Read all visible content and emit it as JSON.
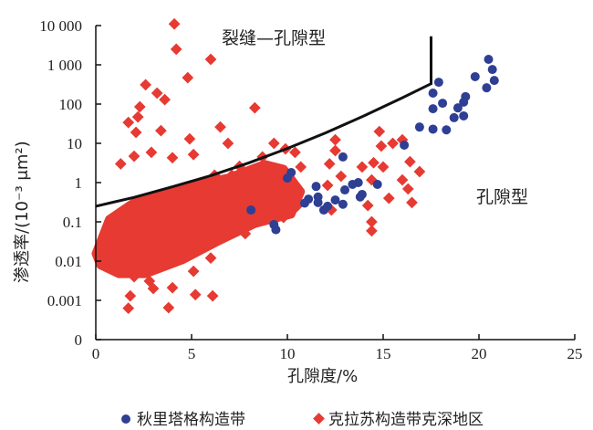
{
  "chart_data": {
    "type": "scatter",
    "xlabel": "孔隙度/%",
    "ylabel": "渗透率/(10⁻³ μm²)",
    "xlim": [
      0,
      25
    ],
    "ylim": [
      0.0001,
      10000
    ],
    "yscale": "log",
    "xticks": [
      {
        "v": 0,
        "label": "0"
      },
      {
        "v": 5,
        "label": "5"
      },
      {
        "v": 10,
        "label": "10"
      },
      {
        "v": 15,
        "label": "15"
      },
      {
        "v": 20,
        "label": "20"
      },
      {
        "v": 25,
        "label": "25"
      }
    ],
    "yticks": [
      {
        "v": 10000,
        "label": "10 000"
      },
      {
        "v": 1000,
        "label": "1 000"
      },
      {
        "v": 100,
        "label": "100"
      },
      {
        "v": 10,
        "label": "10"
      },
      {
        "v": 1,
        "label": "1"
      },
      {
        "v": 0.1,
        "label": "0.1"
      },
      {
        "v": 0.01,
        "label": "0.01"
      },
      {
        "v": 0.001,
        "label": "0.001"
      },
      {
        "v": 0.0001,
        "label": "0"
      }
    ],
    "annotations": {
      "fracture_pore": "裂缝—孔隙型",
      "pore": "孔隙型"
    },
    "legend": {
      "placement": "bottom"
    },
    "boundary_curve": [
      [
        0,
        0.25
      ],
      [
        2,
        0.42
      ],
      [
        4,
        0.78
      ],
      [
        6,
        1.5
      ],
      [
        8,
        3.2
      ],
      [
        10,
        7.4
      ],
      [
        12,
        18.5
      ],
      [
        14,
        50
      ],
      [
        16,
        145
      ],
      [
        17.5,
        330
      ]
    ],
    "series": [
      {
        "name": "秋里塔格构造带",
        "color": "#2e3f94",
        "marker": "circle",
        "points": [
          [
            20.5,
            1380
          ],
          [
            20.7,
            760
          ],
          [
            20.8,
            400
          ],
          [
            20.4,
            260
          ],
          [
            19.8,
            500
          ],
          [
            17.9,
            360
          ],
          [
            17.6,
            190
          ],
          [
            18.1,
            105
          ],
          [
            17.6,
            76
          ],
          [
            19.3,
            155
          ],
          [
            19.2,
            112
          ],
          [
            18.9,
            80
          ],
          [
            18.7,
            45
          ],
          [
            19.2,
            50
          ],
          [
            16.9,
            26
          ],
          [
            17.6,
            23
          ],
          [
            18.3,
            22
          ],
          [
            16.1,
            9
          ],
          [
            12.9,
            4.5
          ],
          [
            14.7,
            0.9
          ],
          [
            13.7,
            1.0
          ],
          [
            13.4,
            0.9
          ],
          [
            13.0,
            0.65
          ],
          [
            13.9,
            0.5
          ],
          [
            13.8,
            0.43
          ],
          [
            12.9,
            0.28
          ],
          [
            12.5,
            0.36
          ],
          [
            11.5,
            0.8
          ],
          [
            11.6,
            0.43
          ],
          [
            11.6,
            0.31
          ],
          [
            12.1,
            0.25
          ],
          [
            11.9,
            0.2
          ],
          [
            11.1,
            0.38
          ],
          [
            10.9,
            0.3
          ],
          [
            10.2,
            1.8
          ],
          [
            10.0,
            1.3
          ],
          [
            9.3,
            0.085
          ],
          [
            9.4,
            0.063
          ],
          [
            8.1,
            0.2
          ]
        ]
      },
      {
        "name": "克拉苏构造带克深地区",
        "color": "#e63a32",
        "marker": "diamond",
        "dense_region": [
          [
            0,
            0.0155
          ],
          [
            0.7,
            0.117
          ],
          [
            2.1,
            0.34
          ],
          [
            4.5,
            0.76
          ],
          [
            6.9,
            1.32
          ],
          [
            8.8,
            2.95
          ],
          [
            9.8,
            2.24
          ],
          [
            10.7,
            0.59
          ],
          [
            10.2,
            0.155
          ],
          [
            8.3,
            0.089
          ],
          [
            6.4,
            0.032
          ],
          [
            4.5,
            0.0105
          ],
          [
            2.6,
            0.0047
          ],
          [
            1.2,
            0.0047
          ],
          [
            0.24,
            0.0079
          ]
        ],
        "points": [
          [
            4.1,
            11000
          ],
          [
            4.2,
            2500
          ],
          [
            6.0,
            1380
          ],
          [
            4.8,
            470
          ],
          [
            2.6,
            310
          ],
          [
            3.2,
            190
          ],
          [
            3.6,
            130
          ],
          [
            2.3,
            85
          ],
          [
            2.2,
            47
          ],
          [
            1.7,
            34
          ],
          [
            2.1,
            19
          ],
          [
            3.4,
            21
          ],
          [
            8.3,
            80
          ],
          [
            6.5,
            26
          ],
          [
            6.9,
            10
          ],
          [
            4.9,
            13
          ],
          [
            5.1,
            5.2
          ],
          [
            1.3,
            3.0
          ],
          [
            2.0,
            4.7
          ],
          [
            2.9,
            5.9
          ],
          [
            4.0,
            4.3
          ],
          [
            6.2,
            1.55
          ],
          [
            7.1,
            1.55
          ],
          [
            2.8,
            0.0031
          ],
          [
            1.7,
            0.00063
          ],
          [
            3.8,
            0.00065
          ],
          [
            5.2,
            0.0014
          ],
          [
            6.1,
            0.0013
          ],
          [
            4.0,
            0.0021
          ],
          [
            1.8,
            0.0013
          ],
          [
            5.1,
            0.0055
          ],
          [
            14.8,
            20
          ],
          [
            14.9,
            8.5
          ],
          [
            15.5,
            10
          ],
          [
            16.0,
            12.3
          ],
          [
            12.5,
            12.3
          ],
          [
            12.5,
            6.5
          ],
          [
            12.2,
            3.0
          ],
          [
            13.9,
            2.5
          ],
          [
            14.5,
            3.2
          ],
          [
            15.0,
            2.5
          ],
          [
            16.4,
            3.4
          ],
          [
            16.9,
            1.9
          ],
          [
            16.0,
            1.17
          ],
          [
            16.3,
            0.69
          ],
          [
            16.5,
            0.31
          ],
          [
            15.3,
            0.4
          ],
          [
            14.4,
            1.17
          ],
          [
            14.2,
            0.26
          ],
          [
            14.4,
            0.1
          ],
          [
            14.4,
            0.059
          ],
          [
            12.1,
            0.85
          ],
          [
            12.8,
            1.45
          ],
          [
            12.3,
            0.2
          ],
          [
            10.7,
            2.5
          ],
          [
            10.4,
            5.9
          ],
          [
            9.3,
            10
          ],
          [
            9.9,
            7.2
          ],
          [
            8.7,
            4.5
          ],
          [
            7.5,
            2.6
          ],
          [
            9.0,
            0.6
          ],
          [
            10.5,
            0.25
          ],
          [
            9.8,
            0.13
          ],
          [
            7.8,
            0.05
          ],
          [
            3.0,
            0.002
          ],
          [
            2.0,
            0.004
          ],
          [
            6.0,
            0.012
          ]
        ]
      }
    ]
  }
}
